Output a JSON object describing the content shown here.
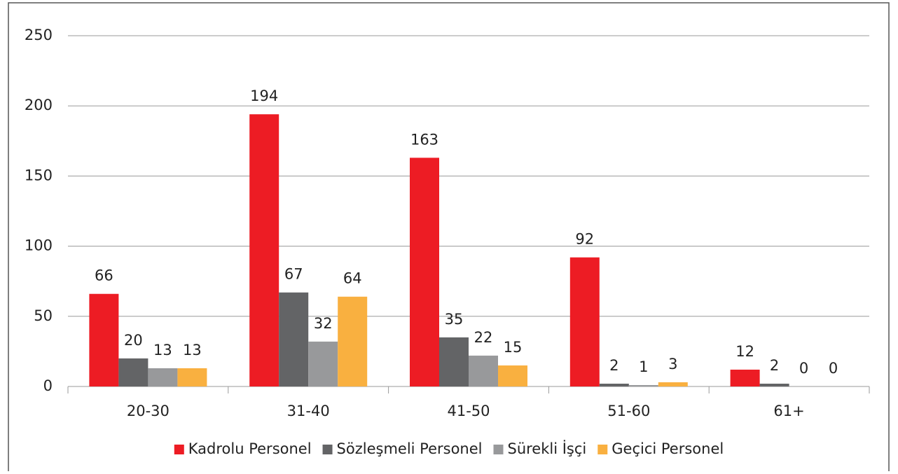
{
  "chart_data": {
    "type": "bar",
    "categories": [
      "20-30",
      "31-40",
      "41-50",
      "51-60",
      "61+"
    ],
    "series": [
      {
        "name": "Kadrolu Personel",
        "color": "#ed1c24",
        "values": [
          66,
          194,
          163,
          92,
          12
        ]
      },
      {
        "name": "Sözleşmeli Personel",
        "color": "#636466",
        "values": [
          20,
          67,
          35,
          2,
          2
        ]
      },
      {
        "name": "Sürekli İşçi",
        "color": "#98999b",
        "values": [
          13,
          32,
          22,
          1,
          0
        ]
      },
      {
        "name": "Geçici Personel",
        "color": "#f9b040",
        "values": [
          13,
          64,
          15,
          3,
          0
        ]
      }
    ],
    "ylim": [
      0,
      250
    ],
    "yticks": [
      0,
      50,
      100,
      150,
      200,
      250
    ],
    "grid": true,
    "legend": "bottom"
  }
}
